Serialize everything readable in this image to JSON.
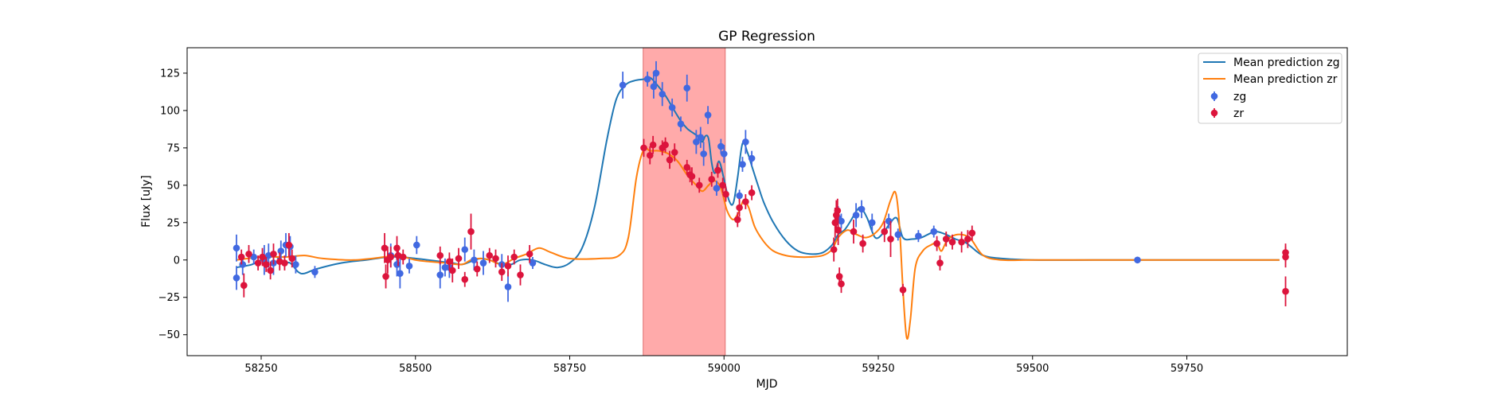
{
  "chart_data": {
    "type": "line",
    "title": "GP Regression",
    "xlabel": "MJD",
    "ylabel": "Flux [uJy]",
    "xlim": [
      58130,
      60010
    ],
    "ylim": [
      -64,
      142
    ],
    "x_ticks": [
      58250,
      58500,
      58750,
      59000,
      59250,
      59500,
      59750
    ],
    "y_ticks": [
      -50,
      -25,
      0,
      25,
      50,
      75,
      100,
      125
    ],
    "grid": false,
    "legend_position": "upper right",
    "shaded_region": {
      "x_start": 58869,
      "x_end": 59002,
      "color": "#ffaaaa"
    },
    "lines": [
      {
        "name": "Mean prediction zg",
        "color": "#1f77b4",
        "x": [
          58210,
          58235,
          58250,
          58265,
          58275,
          58285,
          58297,
          58310,
          58320,
          58340,
          58380,
          58420,
          58455,
          58475,
          58500,
          58520,
          58540,
          58560,
          58575,
          58590,
          58605,
          58620,
          58640,
          58655,
          58670,
          58690,
          58710,
          58730,
          58750,
          58770,
          58790,
          58810,
          58825,
          58840,
          58855,
          58870,
          58880,
          58890,
          58905,
          58918,
          58930,
          58940,
          58950,
          58960,
          58965,
          58970,
          58975,
          58980,
          58985,
          58992,
          59000,
          59008,
          59015,
          59022,
          59030,
          59038,
          59045,
          59055,
          59065,
          59080,
          59100,
          59120,
          59140,
          59160,
          59175,
          59185,
          59195,
          59205,
          59215,
          59222,
          59232,
          59245,
          59258,
          59268,
          59280,
          59290,
          59305,
          59320,
          59335,
          59345,
          59360,
          59375,
          59390,
          59400,
          59420,
          59450,
          59500,
          59600,
          59700,
          59800,
          59900
        ],
        "y": [
          -5,
          -3,
          0,
          2,
          2,
          -2,
          -2,
          -8,
          -9,
          -6,
          -2,
          0,
          2,
          2,
          1,
          0,
          -1,
          -2,
          -3,
          -1,
          1,
          0,
          -3,
          -3,
          0,
          0,
          -3,
          -5,
          -2,
          8,
          35,
          80,
          107,
          117,
          120,
          121,
          122,
          118,
          110,
          101,
          93,
          88,
          85,
          82,
          79,
          83,
          81,
          65,
          58,
          66,
          54,
          40,
          38,
          55,
          78,
          72,
          63,
          50,
          38,
          25,
          13,
          6,
          4,
          5,
          10,
          17,
          20,
          26,
          33,
          35,
          28,
          15,
          18,
          24,
          28,
          15,
          14,
          15,
          18,
          19,
          17,
          14,
          12,
          9,
          3,
          1,
          0,
          0,
          0,
          0,
          0
        ]
      },
      {
        "name": "Mean prediction zr",
        "color": "#ff7f0e",
        "x": [
          58210,
          58250,
          58290,
          58320,
          58350,
          58400,
          58450,
          58470,
          58500,
          58520,
          58550,
          58575,
          58590,
          58605,
          58620,
          58640,
          58660,
          58680,
          58700,
          58720,
          58750,
          58800,
          58830,
          58845,
          58858,
          58870,
          58880,
          58895,
          58910,
          58925,
          58940,
          58955,
          58965,
          58975,
          58985,
          58995,
          59005,
          59015,
          59025,
          59032,
          59040,
          59050,
          59065,
          59080,
          59100,
          59120,
          59140,
          59160,
          59175,
          59185,
          59200,
          59215,
          59230,
          59245,
          59258,
          59270,
          59278,
          59284,
          59290,
          59296,
          59302,
          59310,
          59322,
          59335,
          59345,
          59352,
          59360,
          59370,
          59385,
          59400,
          59420,
          59450,
          59500,
          59600,
          59700,
          59800,
          59900
        ],
        "y": [
          0,
          2,
          2,
          3,
          1,
          0,
          2,
          3,
          0,
          -1,
          -2,
          -3,
          0,
          1,
          0,
          -3,
          1,
          4,
          8,
          5,
          1,
          1,
          3,
          15,
          55,
          74,
          73,
          73,
          71,
          66,
          57,
          50,
          46,
          50,
          53,
          48,
          33,
          27,
          33,
          40,
          35,
          22,
          12,
          6,
          3,
          2,
          2,
          3,
          7,
          15,
          20,
          17,
          15,
          18,
          25,
          40,
          45,
          25,
          -20,
          -52,
          -40,
          -5,
          6,
          10,
          11,
          6,
          12,
          16,
          17,
          14,
          3,
          0,
          0,
          0,
          0,
          0,
          0
        ]
      }
    ],
    "scatter": [
      {
        "name": "zg",
        "color": "#4169e1",
        "points": [
          [
            58210,
            8,
            9
          ],
          [
            58210,
            -12,
            8
          ],
          [
            58220,
            -3,
            7
          ],
          [
            58238,
            2,
            5
          ],
          [
            58255,
            0,
            10
          ],
          [
            58262,
            3,
            8
          ],
          [
            58270,
            -2,
            8
          ],
          [
            58282,
            6,
            7
          ],
          [
            58290,
            10,
            8
          ],
          [
            58297,
            9,
            7
          ],
          [
            58306,
            -3,
            6
          ],
          [
            58337,
            -8,
            4
          ],
          [
            58460,
            3,
            8
          ],
          [
            58470,
            -3,
            8
          ],
          [
            58475,
            -9,
            10
          ],
          [
            58490,
            -4,
            5
          ],
          [
            58502,
            10,
            6
          ],
          [
            58540,
            -10,
            9
          ],
          [
            58548,
            -5,
            6
          ],
          [
            58555,
            -5,
            7
          ],
          [
            58580,
            7,
            8
          ],
          [
            58595,
            0,
            7
          ],
          [
            58610,
            -2,
            8
          ],
          [
            58640,
            -3,
            7
          ],
          [
            58650,
            -18,
            10
          ],
          [
            58690,
            -2,
            4
          ],
          [
            58836,
            117,
            9
          ],
          [
            58876,
            121,
            5
          ],
          [
            58886,
            116,
            8
          ],
          [
            58890,
            125,
            8
          ],
          [
            58900,
            111,
            8
          ],
          [
            58916,
            102,
            6
          ],
          [
            58930,
            91,
            5
          ],
          [
            58940,
            115,
            9
          ],
          [
            58955,
            79,
            8
          ],
          [
            58962,
            82,
            7
          ],
          [
            58967,
            71,
            8
          ],
          [
            58974,
            97,
            6
          ],
          [
            58988,
            48,
            5
          ],
          [
            58995,
            76,
            5
          ],
          [
            59000,
            71,
            6
          ],
          [
            59025,
            43,
            4
          ],
          [
            59030,
            64,
            5
          ],
          [
            59035,
            79,
            8
          ],
          [
            59045,
            68,
            5
          ],
          [
            59185,
            28,
            8
          ],
          [
            59190,
            26,
            5
          ],
          [
            59214,
            30,
            8
          ],
          [
            59223,
            34,
            6
          ],
          [
            59240,
            25,
            6
          ],
          [
            59267,
            26,
            5
          ],
          [
            59282,
            17,
            4
          ],
          [
            59315,
            16,
            4
          ],
          [
            59340,
            19,
            4
          ],
          [
            59670,
            0,
            2
          ]
        ]
      },
      {
        "name": "zr",
        "color": "#dc143c",
        "points": [
          [
            58218,
            2,
            5
          ],
          [
            58222,
            -17,
            8
          ],
          [
            58230,
            4,
            6
          ],
          [
            58245,
            -2,
            5
          ],
          [
            58252,
            2,
            6
          ],
          [
            58258,
            -3,
            5
          ],
          [
            58265,
            -7,
            6
          ],
          [
            58270,
            4,
            7
          ],
          [
            58280,
            -1,
            6
          ],
          [
            58288,
            -2,
            5
          ],
          [
            58295,
            10,
            8
          ],
          [
            58300,
            1,
            6
          ],
          [
            58450,
            8,
            10
          ],
          [
            58452,
            -11,
            8
          ],
          [
            58455,
            0,
            9
          ],
          [
            58460,
            2,
            7
          ],
          [
            58470,
            8,
            8
          ],
          [
            58472,
            3,
            7
          ],
          [
            58480,
            2,
            5
          ],
          [
            58540,
            3,
            6
          ],
          [
            58555,
            -1,
            6
          ],
          [
            58560,
            -7,
            8
          ],
          [
            58570,
            1,
            7
          ],
          [
            58580,
            -13,
            5
          ],
          [
            58590,
            19,
            12
          ],
          [
            58600,
            -6,
            5
          ],
          [
            58620,
            3,
            5
          ],
          [
            58630,
            1,
            6
          ],
          [
            58640,
            -8,
            6
          ],
          [
            58650,
            -4,
            7
          ],
          [
            58660,
            2,
            5
          ],
          [
            58670,
            -10,
            7
          ],
          [
            58685,
            4,
            6
          ],
          [
            58870,
            75,
            6
          ],
          [
            58880,
            70,
            6
          ],
          [
            58885,
            77,
            6
          ],
          [
            58900,
            75,
            5
          ],
          [
            58905,
            77,
            5
          ],
          [
            58912,
            67,
            6
          ],
          [
            58920,
            72,
            6
          ],
          [
            58940,
            62,
            5
          ],
          [
            58945,
            57,
            5
          ],
          [
            58948,
            56,
            6
          ],
          [
            58960,
            50,
            5
          ],
          [
            58980,
            54,
            5
          ],
          [
            58990,
            60,
            5
          ],
          [
            58998,
            50,
            5
          ],
          [
            59003,
            44,
            5
          ],
          [
            59022,
            27,
            5
          ],
          [
            59025,
            35,
            6
          ],
          [
            59035,
            39,
            5
          ],
          [
            59045,
            45,
            5
          ],
          [
            59178,
            7,
            8
          ],
          [
            59180,
            25,
            10
          ],
          [
            59182,
            30,
            10
          ],
          [
            59184,
            33,
            8
          ],
          [
            59185,
            20,
            10
          ],
          [
            59187,
            -11,
            6
          ],
          [
            59190,
            -16,
            6
          ],
          [
            59210,
            19,
            8
          ],
          [
            59225,
            11,
            6
          ],
          [
            59260,
            19,
            7
          ],
          [
            59270,
            14,
            12
          ],
          [
            59290,
            -20,
            4
          ],
          [
            59345,
            11,
            5
          ],
          [
            59350,
            -2,
            5
          ],
          [
            59360,
            14,
            5
          ],
          [
            59370,
            12,
            5
          ],
          [
            59385,
            12,
            7
          ],
          [
            59395,
            14,
            6
          ],
          [
            59402,
            18,
            5
          ],
          [
            59910,
            5,
            6
          ],
          [
            59910,
            2,
            7
          ],
          [
            59910,
            -21,
            10
          ]
        ]
      }
    ]
  }
}
